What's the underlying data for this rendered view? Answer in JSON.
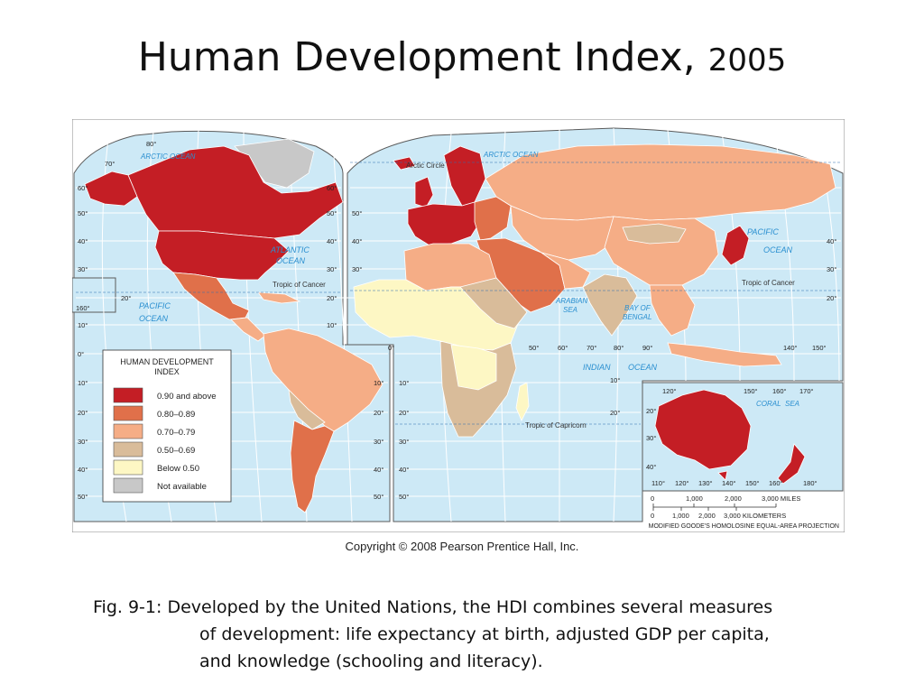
{
  "title": {
    "main": "Human Development Index,",
    "year": "2005"
  },
  "map": {
    "ocean_labels": {
      "arctic_left": "ARCTIC OCEAN",
      "arctic_right": "ARCTIC OCEAN",
      "atlantic_1": "ATLANTIC",
      "atlantic_2": "OCEAN",
      "pacific_left_1": "PACIFIC",
      "pacific_left_2": "OCEAN",
      "pacific_right_1": "PACIFIC",
      "pacific_right_2": "OCEAN",
      "indian_1": "INDIAN",
      "indian_2": "OCEAN",
      "arabian_1": "ARABIAN",
      "arabian_2": "SEA",
      "bengal_1": "BAY OF",
      "bengal_2": "BENGAL",
      "coral_1": "CORAL",
      "coral_2": "SEA"
    },
    "line_labels": {
      "arctic_circle": "Arctic Circle",
      "tropic_cancer_left": "Tropic of Cancer",
      "tropic_cancer_right": "Tropic of Cancer",
      "tropic_capricorn": "Tropic of Capricorn"
    },
    "degree_labels": {
      "d80_top": "80°",
      "d70_top": "70°",
      "l60": "60°",
      "l50": "50°",
      "l40": "40°",
      "l30": "30°",
      "l20": "20°",
      "l10": "10°",
      "l0": "0°",
      "l10s": "10°",
      "l20s": "20°",
      "l30s": "30°",
      "l40s": "40°",
      "l50s": "50°",
      "m60": "60°",
      "m50": "50°",
      "m40": "40°",
      "m30": "30°",
      "m20": "20°",
      "m10": "10°",
      "m10s": "10°",
      "m20s": "20°",
      "m30s": "30°",
      "m40s": "40°",
      "m50s": "50°",
      "n50": "50°",
      "n40": "40°",
      "n30": "30°",
      "n0": "0°",
      "n10s": "10°",
      "n20s": "20°",
      "n30s": "30°",
      "n40s": "40°",
      "n50s": "50°",
      "r40": "40°",
      "r30": "30°",
      "r20": "20°",
      "lon50": "50°",
      "lon60": "60°",
      "lon70": "70°",
      "lon80": "80°",
      "lon90": "90°",
      "lon140": "140°",
      "lon150": "150°",
      "inset_160": "160°",
      "inset_20": "20°",
      "mid_10": "10°",
      "mid_20": "20°",
      "au_120": "120°",
      "au_150": "150°",
      "au_160": "160°",
      "au_170": "170°",
      "au_20": "20°",
      "au_30": "30°",
      "au_40": "40°",
      "au_b110": "110°",
      "au_b120": "120°",
      "au_b130": "130°",
      "au_b140": "140°",
      "au_b150": "150°",
      "au_b160": "160°",
      "au_b180": "180°"
    },
    "legend": {
      "title_1": "HUMAN DEVELOPMENT",
      "title_2": "INDEX",
      "items": [
        {
          "label": "0.90 and above",
          "color": "#c41e25"
        },
        {
          "label": "0.80–0.89",
          "color": "#e0704a"
        },
        {
          "label": "0.70–0.79",
          "color": "#f5ad86"
        },
        {
          "label": "0.50–0.69",
          "color": "#d9bc9a"
        },
        {
          "label": "Below 0.50",
          "color": "#fdf7c4"
        },
        {
          "label": "Not available",
          "color": "#c8c8c8"
        }
      ]
    },
    "scale": {
      "miles_ticks": [
        "0",
        "1,000",
        "2,000",
        "3,000 MILES"
      ],
      "km_ticks": [
        "0",
        "1,000",
        "2,000",
        "3,000 KILOMETERS"
      ]
    },
    "projection": "MODIFIED GOODE'S HOMOLOSINE EQUAL-AREA PROJECTION",
    "colors": {
      "ocean": "#cde9f6",
      "grid": "#ffffff",
      "border": "#5a5a5a"
    }
  },
  "copyright": "Copyright © 2008 Pearson Prentice Hall, Inc.",
  "caption": {
    "line1": "Fig. 9-1: Developed by the United Nations, the HDI combines several measures",
    "line2": "of development: life expectancy at birth, adjusted GDP per capita,",
    "line3": "and knowledge (schooling and literacy)."
  }
}
